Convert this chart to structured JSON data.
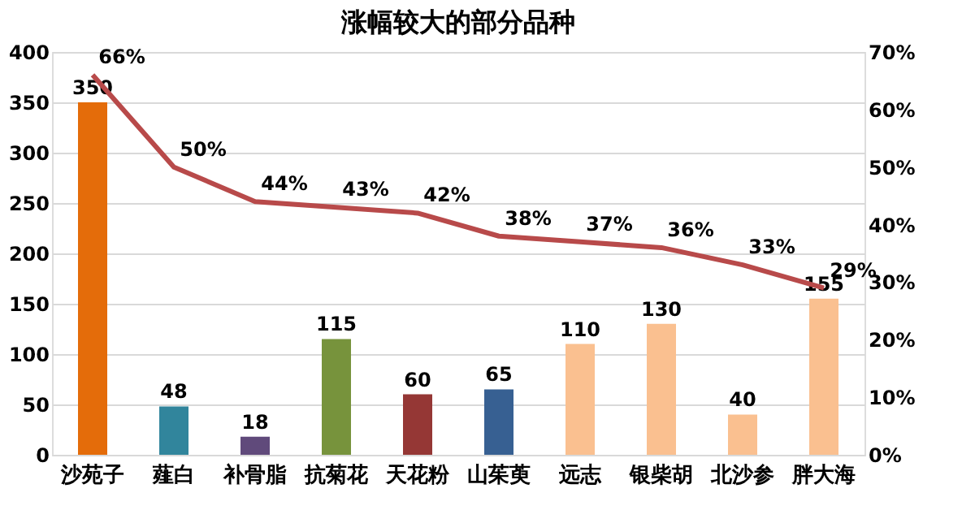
{
  "chart_data": {
    "type": "bar",
    "title": "涨幅较大的部分品种",
    "categories": [
      "沙苑子",
      "薤白",
      "补骨脂",
      "抗菊花",
      "天花粉",
      "山茱萸",
      "远志",
      "银柴胡",
      "北沙参",
      "胖大海"
    ],
    "series": [
      {
        "colors": [
          "#e46c0a",
          "#31859c",
          "#604a7b",
          "#77933c",
          "#953735",
          "#376092",
          "#fac090",
          "#fac090",
          "#fac090",
          "#fac090"
        ],
        "values": [
          350,
          48,
          18,
          115,
          60,
          65,
          110,
          130,
          40,
          155
        ]
      },
      {
        "type": "line",
        "axis": "y2",
        "color": "#b84a4a",
        "values": [
          66,
          50,
          44,
          43,
          42,
          38,
          37,
          36,
          33,
          29
        ],
        "value_labels": [
          "66%",
          "50%",
          "44%",
          "43%",
          "42%",
          "38%",
          "37%",
          "36%",
          "33%",
          "29%"
        ]
      }
    ],
    "ylim": [
      0,
      400
    ],
    "yticks": [
      0,
      50,
      100,
      150,
      200,
      250,
      300,
      350,
      400
    ],
    "y2lim": [
      0,
      70
    ],
    "y2ticks": [
      {
        "value": 0,
        "label": "0%"
      },
      {
        "value": 10,
        "label": "10%"
      },
      {
        "value": 20,
        "label": "20%"
      },
      {
        "value": 30,
        "label": "30%"
      },
      {
        "value": 40,
        "label": "40%"
      },
      {
        "value": 50,
        "label": "50%"
      },
      {
        "value": 60,
        "label": "60%"
      },
      {
        "value": 70,
        "label": "70%"
      }
    ],
    "data_labels": true,
    "grid": "y",
    "marker": "none",
    "line_style": "solid"
  }
}
